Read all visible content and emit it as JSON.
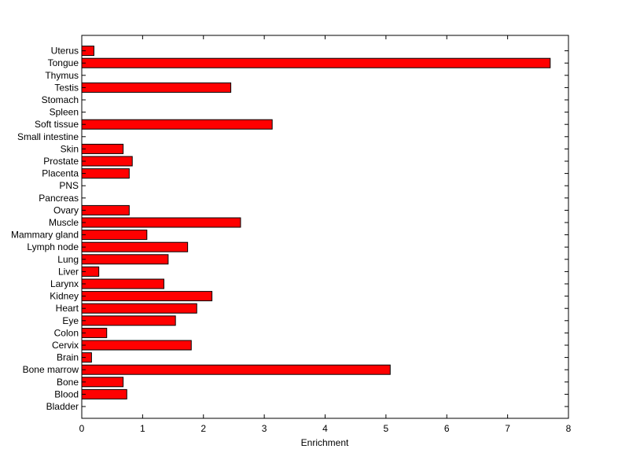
{
  "chart_data": {
    "type": "bar",
    "orientation": "horizontal",
    "title": "",
    "xlabel": "Enrichment",
    "ylabel": "",
    "xlim": [
      0,
      8
    ],
    "xticks": [
      0,
      1,
      2,
      3,
      4,
      5,
      6,
      7,
      8
    ],
    "grid": false,
    "bar_color": "#ff0000",
    "categories": [
      "Bladder",
      "Blood",
      "Bone",
      "Bone marrow",
      "Brain",
      "Cervix",
      "Colon",
      "Eye",
      "Heart",
      "Kidney",
      "Larynx",
      "Liver",
      "Lung",
      "Lymph node",
      "Mammary gland",
      "Muscle",
      "Ovary",
      "Pancreas",
      "PNS",
      "Placenta",
      "Prostate",
      "Skin",
      "Small intestine",
      "Soft tissue",
      "Spleen",
      "Stomach",
      "Testis",
      "Thymus",
      "Tongue",
      "Uterus"
    ],
    "values": [
      0,
      0.74,
      0.68,
      5.07,
      0.16,
      1.8,
      0.41,
      1.54,
      1.89,
      2.14,
      1.35,
      0.28,
      1.42,
      1.74,
      1.07,
      2.61,
      0.78,
      0,
      0,
      0.78,
      0.83,
      0.68,
      0,
      3.13,
      0,
      0,
      2.45,
      0,
      7.7,
      0.2
    ]
  }
}
